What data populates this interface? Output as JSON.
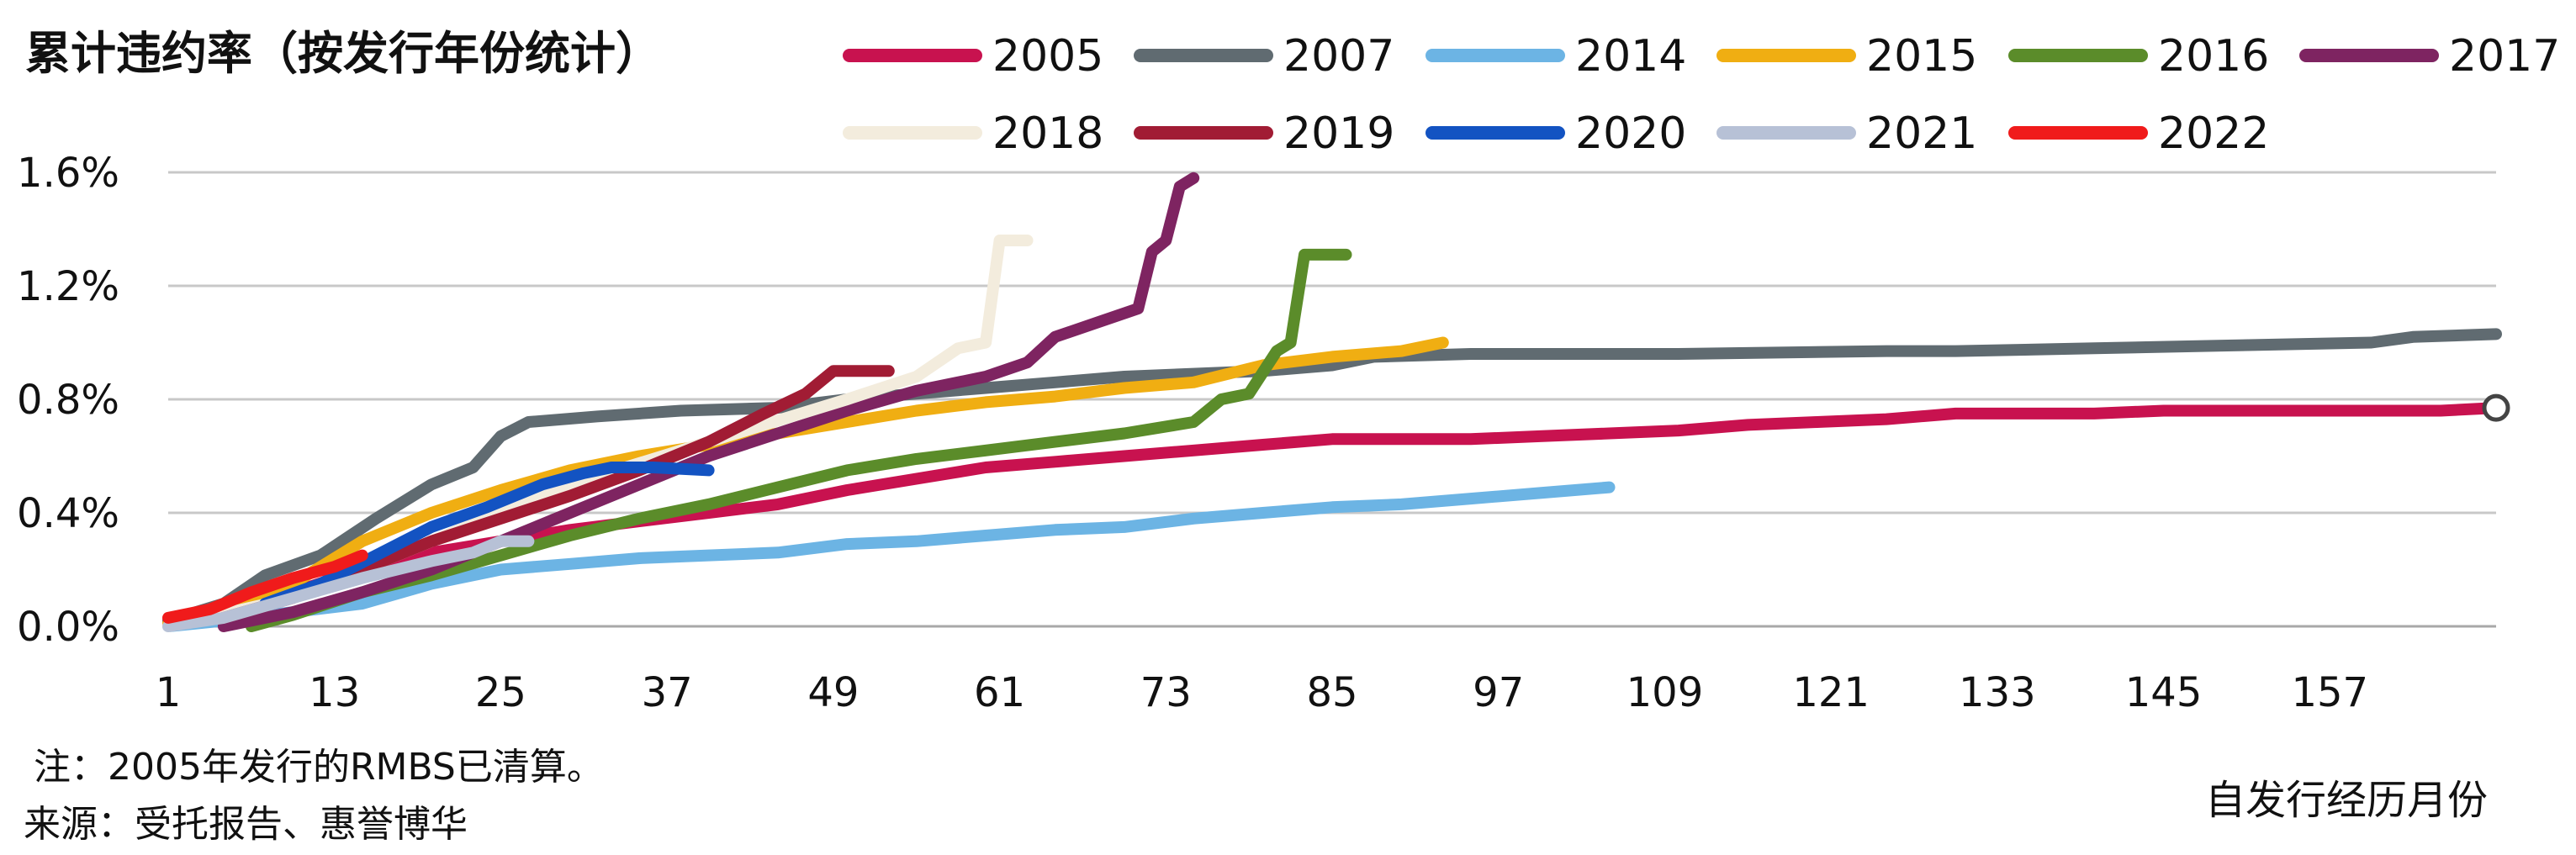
{
  "chart_data": {
    "type": "line",
    "title": "累计违约率（按发行年份统计）",
    "xlabel": "自发行经历月份",
    "ylabel": "",
    "x_ticks": [
      1,
      13,
      25,
      37,
      49,
      61,
      73,
      85,
      97,
      109,
      121,
      133,
      145,
      157
    ],
    "y_ticks": [
      0.0,
      0.4,
      0.8,
      1.2,
      1.6
    ],
    "y_tick_labels": [
      "0.0%",
      "0.4%",
      "0.8%",
      "1.2%",
      "1.6%"
    ],
    "xlim": [
      1,
      169
    ],
    "ylim": [
      0.0,
      1.6
    ],
    "grid": "horizontal",
    "legend": "top-right",
    "series": [
      {
        "name": "2005",
        "color": "#C8124F",
        "points": [
          [
            1,
            0.02
          ],
          [
            5,
            0.04
          ],
          [
            10,
            0.12
          ],
          [
            15,
            0.2
          ],
          [
            20,
            0.26
          ],
          [
            25,
            0.3
          ],
          [
            30,
            0.34
          ],
          [
            35,
            0.37
          ],
          [
            40,
            0.4
          ],
          [
            45,
            0.43
          ],
          [
            50,
            0.48
          ],
          [
            55,
            0.52
          ],
          [
            60,
            0.56
          ],
          [
            65,
            0.58
          ],
          [
            70,
            0.6
          ],
          [
            75,
            0.62
          ],
          [
            80,
            0.64
          ],
          [
            85,
            0.66
          ],
          [
            90,
            0.66
          ],
          [
            95,
            0.66
          ],
          [
            100,
            0.67
          ],
          [
            105,
            0.68
          ],
          [
            110,
            0.69
          ],
          [
            115,
            0.71
          ],
          [
            120,
            0.72
          ],
          [
            125,
            0.73
          ],
          [
            130,
            0.75
          ],
          [
            135,
            0.75
          ],
          [
            140,
            0.75
          ],
          [
            145,
            0.76
          ],
          [
            150,
            0.76
          ],
          [
            155,
            0.76
          ],
          [
            160,
            0.76
          ],
          [
            165,
            0.76
          ],
          [
            169,
            0.77
          ]
        ]
      },
      {
        "name": "2007",
        "color": "#606B71",
        "points": [
          [
            1,
            0.02
          ],
          [
            5,
            0.08
          ],
          [
            8,
            0.18
          ],
          [
            12,
            0.25
          ],
          [
            16,
            0.38
          ],
          [
            20,
            0.5
          ],
          [
            23,
            0.56
          ],
          [
            25,
            0.67
          ],
          [
            27,
            0.72
          ],
          [
            32,
            0.74
          ],
          [
            38,
            0.76
          ],
          [
            45,
            0.77
          ],
          [
            50,
            0.8
          ],
          [
            55,
            0.82
          ],
          [
            60,
            0.84
          ],
          [
            65,
            0.86
          ],
          [
            70,
            0.88
          ],
          [
            75,
            0.89
          ],
          [
            80,
            0.9
          ],
          [
            85,
            0.92
          ],
          [
            88,
            0.95
          ],
          [
            95,
            0.96
          ],
          [
            110,
            0.96
          ],
          [
            125,
            0.97
          ],
          [
            130,
            0.97
          ],
          [
            140,
            0.98
          ],
          [
            150,
            0.99
          ],
          [
            160,
            1.0
          ],
          [
            163,
            1.02
          ],
          [
            169,
            1.03
          ]
        ]
      },
      {
        "name": "2014",
        "color": "#6CB4E4",
        "points": [
          [
            1,
            0.0
          ],
          [
            5,
            0.02
          ],
          [
            10,
            0.05
          ],
          [
            15,
            0.08
          ],
          [
            20,
            0.15
          ],
          [
            25,
            0.2
          ],
          [
            30,
            0.22
          ],
          [
            35,
            0.24
          ],
          [
            40,
            0.25
          ],
          [
            45,
            0.26
          ],
          [
            50,
            0.29
          ],
          [
            55,
            0.3
          ],
          [
            60,
            0.32
          ],
          [
            65,
            0.34
          ],
          [
            70,
            0.35
          ],
          [
            75,
            0.38
          ],
          [
            80,
            0.4
          ],
          [
            85,
            0.42
          ],
          [
            90,
            0.43
          ],
          [
            95,
            0.45
          ],
          [
            100,
            0.47
          ],
          [
            105,
            0.49
          ]
        ]
      },
      {
        "name": "2015",
        "color": "#F0AE12",
        "points": [
          [
            1,
            0.01
          ],
          [
            5,
            0.05
          ],
          [
            10,
            0.15
          ],
          [
            15,
            0.3
          ],
          [
            20,
            0.4
          ],
          [
            25,
            0.48
          ],
          [
            30,
            0.55
          ],
          [
            35,
            0.6
          ],
          [
            40,
            0.64
          ],
          [
            45,
            0.68
          ],
          [
            50,
            0.72
          ],
          [
            55,
            0.76
          ],
          [
            60,
            0.79
          ],
          [
            65,
            0.81
          ],
          [
            70,
            0.84
          ],
          [
            75,
            0.86
          ],
          [
            80,
            0.92
          ],
          [
            85,
            0.95
          ],
          [
            90,
            0.97
          ],
          [
            93,
            1.0
          ]
        ]
      },
      {
        "name": "2016",
        "color": "#5B8C2A",
        "points": [
          [
            7,
            0.0
          ],
          [
            10,
            0.04
          ],
          [
            15,
            0.12
          ],
          [
            20,
            0.18
          ],
          [
            25,
            0.25
          ],
          [
            30,
            0.32
          ],
          [
            35,
            0.38
          ],
          [
            40,
            0.43
          ],
          [
            45,
            0.49
          ],
          [
            50,
            0.55
          ],
          [
            55,
            0.59
          ],
          [
            60,
            0.62
          ],
          [
            65,
            0.65
          ],
          [
            70,
            0.68
          ],
          [
            75,
            0.72
          ],
          [
            77,
            0.8
          ],
          [
            79,
            0.82
          ],
          [
            81,
            0.97
          ],
          [
            82,
            1.0
          ],
          [
            83,
            1.31
          ],
          [
            86,
            1.31
          ]
        ]
      },
      {
        "name": "2017",
        "color": "#7E2461",
        "points": [
          [
            5,
            0.0
          ],
          [
            10,
            0.05
          ],
          [
            15,
            0.12
          ],
          [
            20,
            0.2
          ],
          [
            25,
            0.3
          ],
          [
            30,
            0.4
          ],
          [
            35,
            0.5
          ],
          [
            40,
            0.6
          ],
          [
            45,
            0.68
          ],
          [
            50,
            0.76
          ],
          [
            55,
            0.83
          ],
          [
            60,
            0.88
          ],
          [
            63,
            0.93
          ],
          [
            65,
            1.02
          ],
          [
            68,
            1.07
          ],
          [
            71,
            1.12
          ],
          [
            72,
            1.32
          ],
          [
            73,
            1.36
          ],
          [
            74,
            1.55
          ],
          [
            75,
            1.58
          ]
        ]
      },
      {
        "name": "2018",
        "color": "#F3ECDD",
        "points": [
          [
            1,
            0.0
          ],
          [
            10,
            0.1
          ],
          [
            20,
            0.3
          ],
          [
            30,
            0.5
          ],
          [
            40,
            0.65
          ],
          [
            50,
            0.8
          ],
          [
            55,
            0.88
          ],
          [
            58,
            0.98
          ],
          [
            60,
            1.0
          ],
          [
            61,
            1.36
          ],
          [
            63,
            1.36
          ]
        ]
      },
      {
        "name": "2019",
        "color": "#A11C34",
        "points": [
          [
            5,
            0.03
          ],
          [
            10,
            0.1
          ],
          [
            15,
            0.2
          ],
          [
            20,
            0.3
          ],
          [
            25,
            0.38
          ],
          [
            30,
            0.46
          ],
          [
            35,
            0.55
          ],
          [
            40,
            0.65
          ],
          [
            44,
            0.75
          ],
          [
            47,
            0.82
          ],
          [
            49,
            0.9
          ],
          [
            53,
            0.9
          ]
        ]
      },
      {
        "name": "2020",
        "color": "#1353C2",
        "points": [
          [
            8,
            0.08
          ],
          [
            12,
            0.15
          ],
          [
            16,
            0.25
          ],
          [
            20,
            0.35
          ],
          [
            24,
            0.42
          ],
          [
            28,
            0.5
          ],
          [
            31,
            0.54
          ],
          [
            33,
            0.56
          ],
          [
            36,
            0.56
          ],
          [
            40,
            0.55
          ]
        ]
      },
      {
        "name": "2021",
        "color": "#B7C1D6",
        "points": [
          [
            1,
            0.0
          ],
          [
            5,
            0.03
          ],
          [
            10,
            0.1
          ],
          [
            15,
            0.17
          ],
          [
            20,
            0.23
          ],
          [
            23,
            0.26
          ],
          [
            25,
            0.3
          ],
          [
            27,
            0.3
          ]
        ]
      },
      {
        "name": "2022",
        "color": "#F01B1B",
        "points": [
          [
            1,
            0.03
          ],
          [
            4,
            0.06
          ],
          [
            7,
            0.12
          ],
          [
            10,
            0.17
          ],
          [
            13,
            0.21
          ],
          [
            15,
            0.25
          ]
        ]
      }
    ],
    "end_marker": {
      "series": "2005",
      "x": 169,
      "y": 0.77
    }
  },
  "notes": {
    "footnote": "注：2005年发行的RMBS已清算。",
    "source": "来源：受托报告、惠誉博华"
  }
}
